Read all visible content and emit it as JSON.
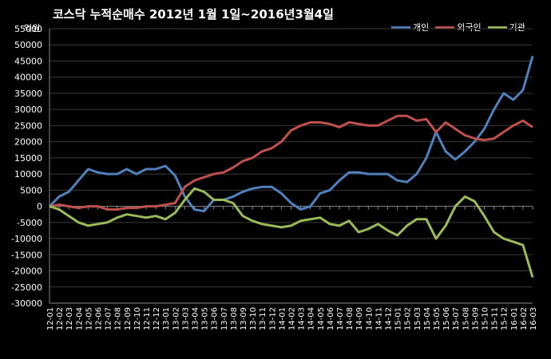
{
  "title": "코스닥  누적순매수 2012년 1월 1일~2016년3월4일",
  "unit": "억원",
  "colors": {
    "background": "#000000",
    "grid": "#3a3a3a",
    "axis_text": "#ffffff"
  },
  "chart_data": {
    "type": "line",
    "title": "코스닥  누적순매수 2012년 1월 1일~2016년3월4일",
    "xlabel": "",
    "ylabel": "억원",
    "ylim": [
      -30000,
      55000
    ],
    "yticks": [
      -30000,
      -25000,
      -20000,
      -15000,
      -10000,
      -5000,
      0,
      5000,
      10000,
      15000,
      20000,
      25000,
      30000,
      35000,
      40000,
      45000,
      50000,
      55000
    ],
    "ytick_labels": [
      "-30000",
      "-25000",
      "-20000",
      "-15000",
      "-10000",
      "-5000",
      "0",
      "5000",
      "10000",
      "15000",
      "20000",
      "25000",
      "30000",
      "35000",
      "40000",
      "45000",
      "50000",
      "55000"
    ],
    "grid": true,
    "legend_position": "top-right",
    "categories": [
      "12-01",
      "12-02",
      "12-03",
      "12-04",
      "12-05",
      "12-06",
      "12-07",
      "12-08",
      "12-09",
      "12-10",
      "12-11",
      "12-12",
      "13-01",
      "13-02",
      "13-03",
      "13-04",
      "13-05",
      "13-06",
      "13-07",
      "13-08",
      "13-09",
      "13-10",
      "13-11",
      "13-12",
      "14-01",
      "14-02",
      "14-03",
      "14-04",
      "14-05",
      "14-06",
      "14-07",
      "14-08",
      "14-09",
      "14-10",
      "14-11",
      "14-12",
      "15-01",
      "15-02",
      "15-03",
      "15-04",
      "15-05",
      "15-06",
      "15-07",
      "15-08",
      "15-09",
      "15-10",
      "15-11",
      "15-12",
      "16-01",
      "16-02",
      "16-03"
    ],
    "series": [
      {
        "name": "개인",
        "color": "#4f81bd",
        "values": [
          0,
          3000,
          4500,
          8000,
          11500,
          10500,
          10000,
          10000,
          11500,
          10000,
          11500,
          11500,
          12500,
          9500,
          3000,
          -1000,
          -1500,
          2000,
          2000,
          3000,
          4500,
          5500,
          6000,
          6000,
          4000,
          1000,
          -1000,
          0,
          4000,
          5000,
          8000,
          10500,
          10500,
          10000,
          10000,
          10000,
          8000,
          7500,
          10000,
          15000,
          23000,
          17000,
          14500,
          17000,
          20000,
          24000,
          30000,
          35000,
          33000,
          36000,
          46500
        ]
      },
      {
        "name": "외국인",
        "color": "#c0504d",
        "values": [
          0,
          500,
          0,
          -500,
          0,
          0,
          -1000,
          -1000,
          -500,
          -500,
          0,
          0,
          500,
          1000,
          6000,
          8000,
          9000,
          10000,
          10500,
          12000,
          14000,
          15000,
          17000,
          18000,
          20000,
          23500,
          25000,
          26000,
          26000,
          25500,
          24500,
          26000,
          25500,
          25000,
          25000,
          26500,
          28000,
          28000,
          26500,
          27000,
          23000,
          26000,
          24000,
          22000,
          21000,
          20500,
          21000,
          23000,
          25000,
          26500,
          24500
        ]
      },
      {
        "name": "기관",
        "color": "#9bbb59",
        "values": [
          0,
          -1000,
          -3000,
          -5000,
          -6000,
          -5500,
          -5000,
          -3500,
          -2500,
          -3000,
          -3500,
          -3000,
          -4000,
          -2000,
          2000,
          5500,
          4500,
          2000,
          2000,
          1000,
          -3000,
          -4500,
          -5500,
          -6000,
          -6500,
          -6000,
          -4500,
          -4000,
          -3500,
          -5500,
          -6000,
          -4500,
          -8000,
          -7000,
          -5500,
          -7500,
          -9000,
          -6000,
          -4000,
          -4000,
          -10000,
          -6000,
          0,
          3000,
          1500,
          -3000,
          -8000,
          -10000,
          -11000,
          -12000,
          -22000
        ]
      }
    ]
  }
}
